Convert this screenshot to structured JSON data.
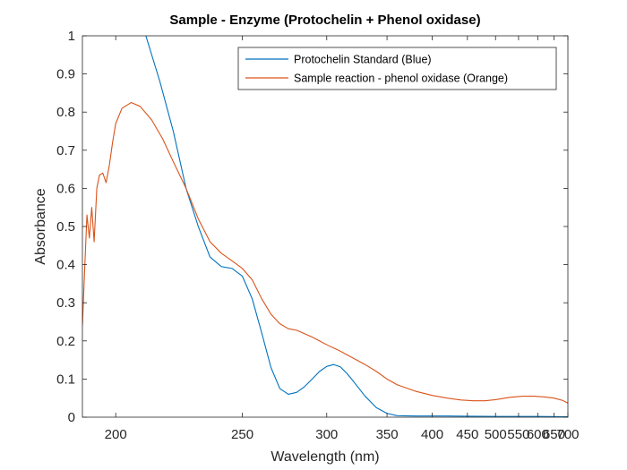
{
  "chart_data": {
    "type": "line",
    "title": "Sample - Enzyme (Protochelin + Phenol oxidase)",
    "xlabel": "Wavelength (nm)",
    "ylabel": "Absorbance",
    "x_scale": "reciprocal",
    "xlim": [
      190,
      700
    ],
    "ylim": [
      0,
      1
    ],
    "x_ticks": [
      200,
      250,
      300,
      350,
      400,
      450,
      500,
      550,
      600,
      650,
      700
    ],
    "y_ticks": [
      0,
      0.1,
      0.2,
      0.3,
      0.4,
      0.5,
      0.6,
      0.7,
      0.8,
      0.9,
      1
    ],
    "y_tick_labels": [
      "0",
      "0.1",
      "0.2",
      "0.3",
      "0.4",
      "0.5",
      "0.6",
      "0.7",
      "0.8",
      "0.9",
      "1"
    ],
    "grid": false,
    "legend_position": "top-right",
    "series": [
      {
        "name": "Protochelin Standard (Blue)",
        "color": "#0072BD",
        "points": [
          [
            210,
            1.0
          ],
          [
            215,
            0.88
          ],
          [
            220,
            0.75
          ],
          [
            225,
            0.6
          ],
          [
            230,
            0.5
          ],
          [
            235,
            0.42
          ],
          [
            240,
            0.395
          ],
          [
            245,
            0.39
          ],
          [
            250,
            0.37
          ],
          [
            255,
            0.31
          ],
          [
            260,
            0.22
          ],
          [
            265,
            0.13
          ],
          [
            270,
            0.075
          ],
          [
            275,
            0.06
          ],
          [
            280,
            0.065
          ],
          [
            285,
            0.08
          ],
          [
            290,
            0.1
          ],
          [
            295,
            0.12
          ],
          [
            300,
            0.133
          ],
          [
            305,
            0.138
          ],
          [
            310,
            0.132
          ],
          [
            315,
            0.115
          ],
          [
            320,
            0.095
          ],
          [
            330,
            0.055
          ],
          [
            340,
            0.025
          ],
          [
            350,
            0.01
          ],
          [
            360,
            0.004
          ],
          [
            380,
            0.003
          ],
          [
            420,
            0.003
          ],
          [
            500,
            0.002
          ],
          [
            600,
            0.002
          ],
          [
            700,
            0.001
          ]
        ]
      },
      {
        "name": "Sample reaction - phenol oxidase (Orange)",
        "color": "#D95319",
        "points": [
          [
            190,
            0.24
          ],
          [
            190.7,
            0.4
          ],
          [
            191.3,
            0.53
          ],
          [
            192,
            0.47
          ],
          [
            192.7,
            0.55
          ],
          [
            193.4,
            0.46
          ],
          [
            194.2,
            0.6
          ],
          [
            195,
            0.635
          ],
          [
            196,
            0.64
          ],
          [
            197,
            0.615
          ],
          [
            198,
            0.66
          ],
          [
            199,
            0.72
          ],
          [
            200,
            0.77
          ],
          [
            202,
            0.81
          ],
          [
            205,
            0.825
          ],
          [
            208,
            0.815
          ],
          [
            212,
            0.78
          ],
          [
            216,
            0.73
          ],
          [
            220,
            0.67
          ],
          [
            225,
            0.6
          ],
          [
            230,
            0.52
          ],
          [
            235,
            0.46
          ],
          [
            240,
            0.43
          ],
          [
            245,
            0.41
          ],
          [
            250,
            0.39
          ],
          [
            255,
            0.36
          ],
          [
            260,
            0.31
          ],
          [
            265,
            0.27
          ],
          [
            270,
            0.245
          ],
          [
            275,
            0.232
          ],
          [
            280,
            0.228
          ],
          [
            290,
            0.21
          ],
          [
            300,
            0.19
          ],
          [
            310,
            0.173
          ],
          [
            320,
            0.155
          ],
          [
            330,
            0.138
          ],
          [
            340,
            0.12
          ],
          [
            350,
            0.1
          ],
          [
            360,
            0.085
          ],
          [
            380,
            0.068
          ],
          [
            400,
            0.057
          ],
          [
            420,
            0.05
          ],
          [
            440,
            0.045
          ],
          [
            460,
            0.043
          ],
          [
            480,
            0.043
          ],
          [
            500,
            0.046
          ],
          [
            530,
            0.052
          ],
          [
            560,
            0.055
          ],
          [
            590,
            0.055
          ],
          [
            620,
            0.053
          ],
          [
            650,
            0.05
          ],
          [
            680,
            0.044
          ],
          [
            700,
            0.037
          ]
        ]
      }
    ]
  }
}
